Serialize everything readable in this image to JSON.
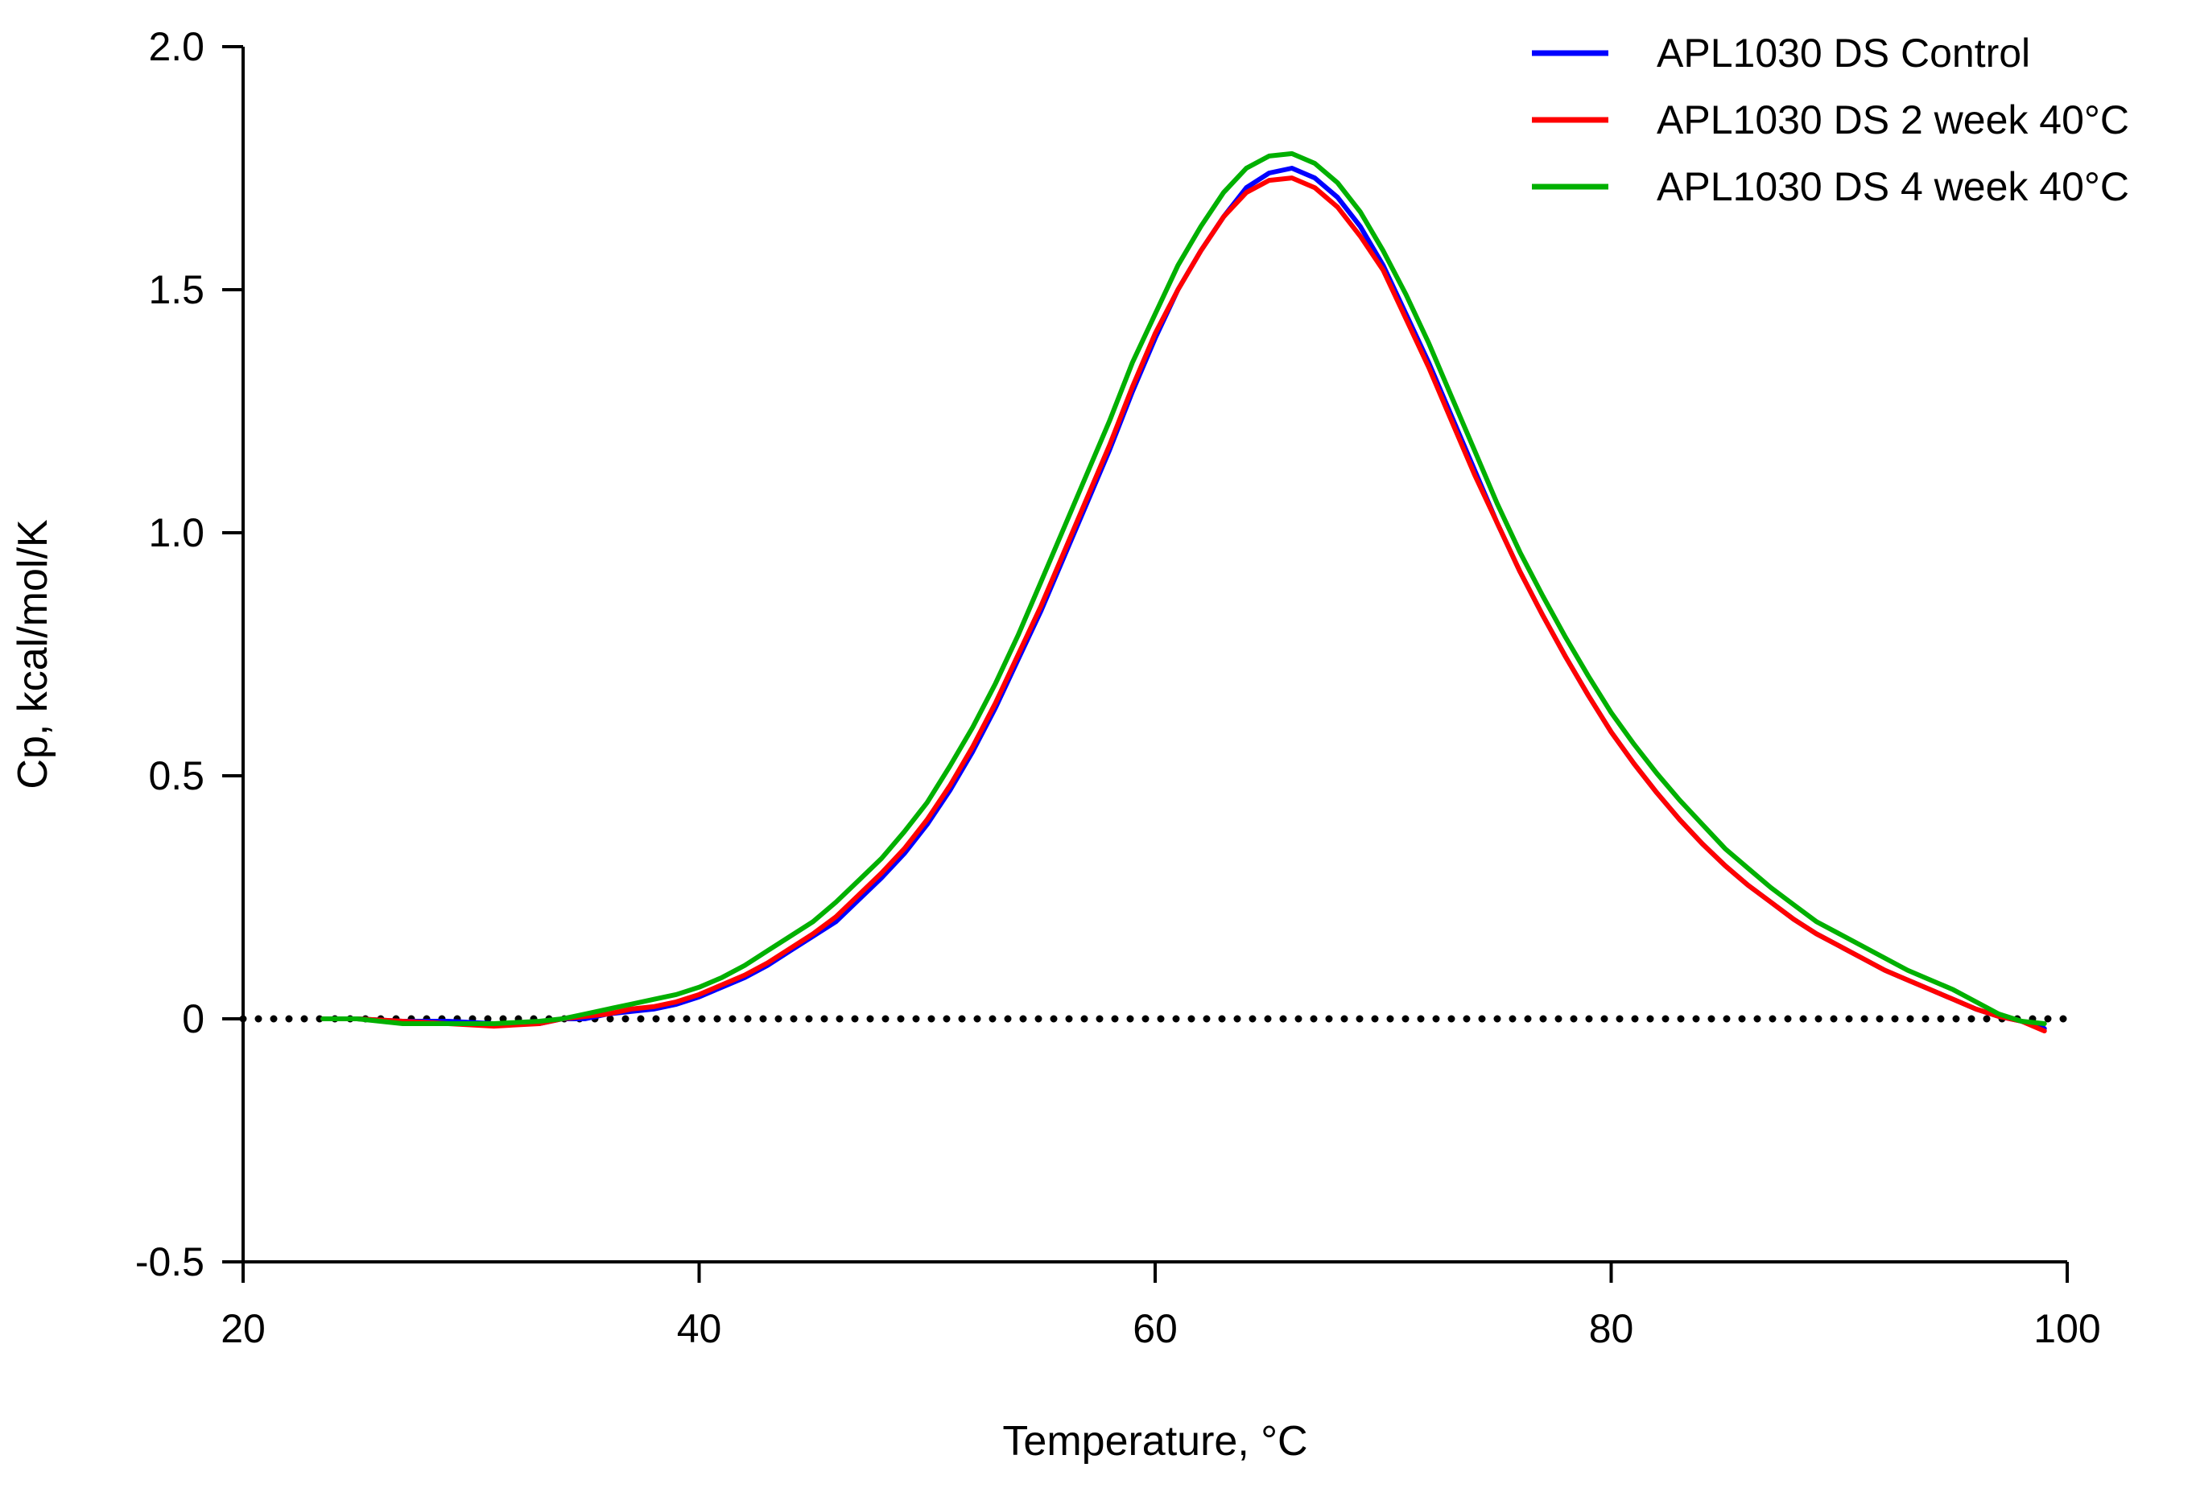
{
  "chart_data": {
    "type": "line",
    "title": "",
    "xlabel": "Temperature, °C",
    "ylabel": "Cp, kcal/mol/K",
    "xlim": [
      20,
      100
    ],
    "ylim": [
      -0.5,
      2.0
    ],
    "xticks": [
      20,
      40,
      60,
      80,
      100
    ],
    "xtick_labels": [
      "20",
      "40",
      "60",
      "80",
      "100"
    ],
    "yticks": [
      -0.5,
      0,
      0.5,
      1.0,
      1.5,
      2.0
    ],
    "ytick_labels": [
      "-0.5",
      "0",
      "0.5",
      "1.0",
      "1.5",
      "2.0"
    ],
    "grid": false,
    "legend_position": "top-right",
    "baseline": {
      "y": 0,
      "style": "dotted",
      "color": "#000000",
      "x_range": [
        20,
        100
      ]
    },
    "series": [
      {
        "name": "APL1030 DS Control",
        "color": "#0000FF",
        "x": [
          23.5,
          25,
          27,
          29,
          31,
          33,
          34,
          35,
          36,
          37,
          38,
          39,
          40,
          41,
          42,
          43,
          44,
          45,
          46,
          47,
          48,
          49,
          50,
          51,
          52,
          53,
          54,
          55,
          56,
          57,
          58,
          59,
          60,
          61,
          62,
          63,
          64,
          65,
          66,
          67,
          68,
          69,
          70,
          71,
          72,
          73,
          74,
          75,
          76,
          77,
          78,
          79,
          80,
          81,
          82,
          83,
          84,
          85,
          86,
          87,
          88,
          89,
          90,
          91,
          92,
          93,
          94,
          95,
          96,
          97,
          98,
          99
        ],
        "y": [
          0.0,
          0.0,
          -0.005,
          -0.005,
          -0.01,
          -0.01,
          0.0,
          0.0,
          0.01,
          0.015,
          0.02,
          0.03,
          0.045,
          0.065,
          0.085,
          0.11,
          0.14,
          0.17,
          0.2,
          0.245,
          0.29,
          0.34,
          0.4,
          0.47,
          0.55,
          0.64,
          0.74,
          0.84,
          0.95,
          1.06,
          1.17,
          1.29,
          1.4,
          1.5,
          1.58,
          1.65,
          1.71,
          1.74,
          1.75,
          1.73,
          1.69,
          1.63,
          1.55,
          1.45,
          1.35,
          1.24,
          1.13,
          1.02,
          0.92,
          0.83,
          0.745,
          0.665,
          0.59,
          0.525,
          0.465,
          0.41,
          0.36,
          0.315,
          0.275,
          0.24,
          0.205,
          0.175,
          0.15,
          0.125,
          0.1,
          0.08,
          0.06,
          0.04,
          0.02,
          0.005,
          -0.005,
          -0.02
        ]
      },
      {
        "name": "APL1030 DS 2 week 40°C",
        "color": "#FF0000",
        "x": [
          23.5,
          25,
          27,
          29,
          31,
          33,
          34,
          35,
          36,
          37,
          38,
          39,
          40,
          41,
          42,
          43,
          44,
          45,
          46,
          47,
          48,
          49,
          50,
          51,
          52,
          53,
          54,
          55,
          56,
          57,
          58,
          59,
          60,
          61,
          62,
          63,
          64,
          65,
          66,
          67,
          68,
          69,
          70,
          71,
          72,
          73,
          74,
          75,
          76,
          77,
          78,
          79,
          80,
          81,
          82,
          83,
          84,
          85,
          86,
          87,
          88,
          89,
          90,
          91,
          92,
          93,
          94,
          95,
          96,
          97,
          98,
          99
        ],
        "y": [
          0.0,
          0.0,
          -0.005,
          -0.01,
          -0.015,
          -0.01,
          0.0,
          0.005,
          0.01,
          0.02,
          0.025,
          0.035,
          0.05,
          0.07,
          0.09,
          0.115,
          0.145,
          0.175,
          0.21,
          0.255,
          0.3,
          0.35,
          0.41,
          0.48,
          0.56,
          0.65,
          0.75,
          0.85,
          0.96,
          1.07,
          1.18,
          1.3,
          1.41,
          1.5,
          1.58,
          1.65,
          1.7,
          1.725,
          1.73,
          1.71,
          1.67,
          1.61,
          1.54,
          1.44,
          1.34,
          1.23,
          1.12,
          1.02,
          0.92,
          0.83,
          0.745,
          0.665,
          0.59,
          0.525,
          0.465,
          0.41,
          0.36,
          0.315,
          0.275,
          0.24,
          0.205,
          0.175,
          0.15,
          0.125,
          0.1,
          0.08,
          0.06,
          0.04,
          0.02,
          0.005,
          -0.005,
          -0.025
        ]
      },
      {
        "name": "APL1030 DS 4 week 40°C",
        "color": "#00B000",
        "x": [
          23.5,
          25,
          27,
          29,
          31,
          33,
          34,
          35,
          36,
          37,
          38,
          39,
          40,
          41,
          42,
          43,
          44,
          45,
          46,
          47,
          48,
          49,
          50,
          51,
          52,
          53,
          54,
          55,
          56,
          57,
          58,
          59,
          60,
          61,
          62,
          63,
          64,
          65,
          66,
          67,
          68,
          69,
          70,
          71,
          72,
          73,
          74,
          75,
          76,
          77,
          78,
          79,
          80,
          81,
          82,
          83,
          84,
          85,
          86,
          87,
          88,
          89,
          90,
          91,
          92,
          93,
          94,
          95,
          96,
          97,
          98,
          99
        ],
        "y": [
          0.0,
          0.0,
          -0.01,
          -0.01,
          -0.01,
          -0.005,
          0.0,
          0.01,
          0.02,
          0.03,
          0.04,
          0.05,
          0.065,
          0.085,
          0.11,
          0.14,
          0.17,
          0.2,
          0.24,
          0.285,
          0.33,
          0.385,
          0.445,
          0.52,
          0.6,
          0.69,
          0.79,
          0.9,
          1.01,
          1.12,
          1.23,
          1.35,
          1.45,
          1.55,
          1.63,
          1.7,
          1.75,
          1.775,
          1.78,
          1.76,
          1.72,
          1.66,
          1.58,
          1.49,
          1.39,
          1.28,
          1.17,
          1.06,
          0.96,
          0.87,
          0.785,
          0.705,
          0.63,
          0.565,
          0.505,
          0.45,
          0.4,
          0.35,
          0.31,
          0.27,
          0.235,
          0.2,
          0.175,
          0.15,
          0.125,
          0.1,
          0.08,
          0.06,
          0.035,
          0.01,
          -0.005,
          -0.01
        ]
      }
    ]
  }
}
